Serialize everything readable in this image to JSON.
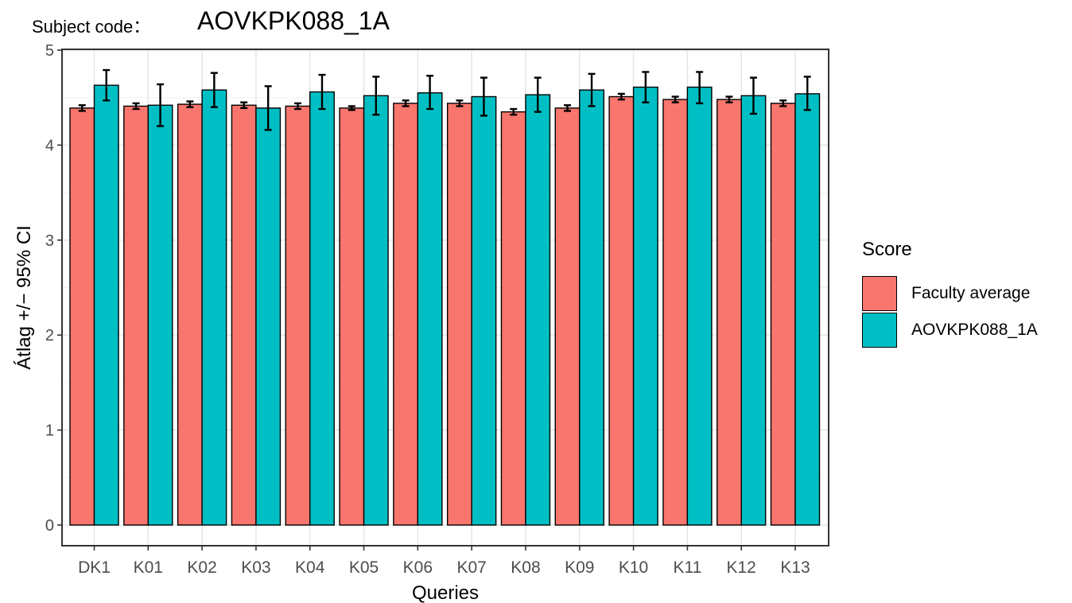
{
  "chart_data": {
    "type": "bar",
    "title_prefix": "Subject code：",
    "title": "AOVKPK088_1A",
    "xlabel": "Queries",
    "ylabel": "Átlag +/− 95% CI",
    "ylim": [
      0,
      5
    ],
    "yticks": [
      0,
      1,
      2,
      3,
      4,
      5
    ],
    "grid": true,
    "legend_title": "Score",
    "legend_position": "right",
    "categories": [
      "DK1",
      "K01",
      "K02",
      "K03",
      "K04",
      "K05",
      "K06",
      "K07",
      "K08",
      "K09",
      "K10",
      "K11",
      "K12",
      "K13"
    ],
    "series": [
      {
        "name": "Faculty average",
        "color": "#F8766D",
        "values": [
          4.39,
          4.41,
          4.43,
          4.42,
          4.41,
          4.39,
          4.44,
          4.44,
          4.35,
          4.39,
          4.51,
          4.48,
          4.48,
          4.44
        ],
        "ci_low": [
          4.36,
          4.38,
          4.4,
          4.39,
          4.38,
          4.37,
          4.41,
          4.41,
          4.32,
          4.36,
          4.48,
          4.45,
          4.45,
          4.41
        ],
        "ci_high": [
          4.42,
          4.44,
          4.46,
          4.45,
          4.44,
          4.41,
          4.47,
          4.47,
          4.38,
          4.42,
          4.54,
          4.51,
          4.51,
          4.47
        ]
      },
      {
        "name": "AOVKPK088_1A",
        "color": "#00BFC4",
        "values": [
          4.63,
          4.42,
          4.58,
          4.39,
          4.56,
          4.52,
          4.55,
          4.51,
          4.53,
          4.58,
          4.61,
          4.61,
          4.52,
          4.54
        ],
        "ci_low": [
          4.47,
          4.2,
          4.4,
          4.16,
          4.38,
          4.32,
          4.38,
          4.31,
          4.35,
          4.41,
          4.45,
          4.44,
          4.33,
          4.37
        ],
        "ci_high": [
          4.79,
          4.64,
          4.76,
          4.62,
          4.74,
          4.72,
          4.73,
          4.71,
          4.71,
          4.75,
          4.77,
          4.77,
          4.71,
          4.72
        ]
      }
    ]
  }
}
